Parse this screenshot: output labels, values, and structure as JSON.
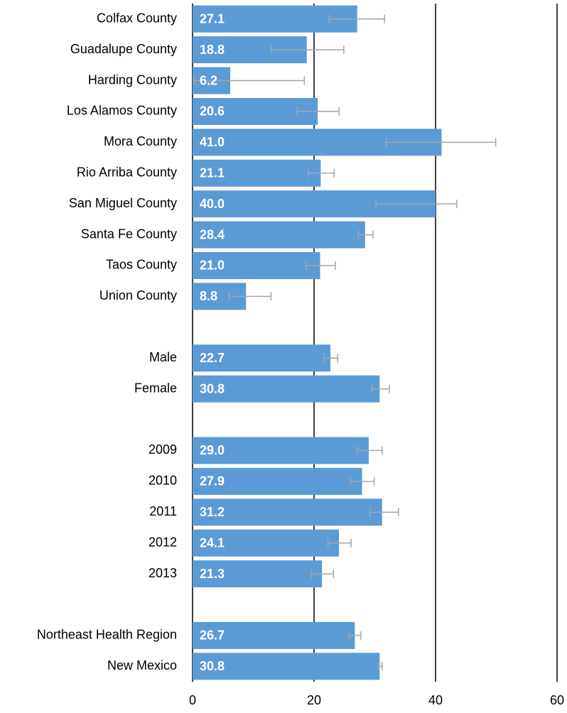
{
  "chart_data": {
    "type": "bar",
    "orientation": "horizontal",
    "categories": [
      "Colfax County",
      "Guadalupe County",
      "Harding County",
      "Los Alamos County",
      "Mora County",
      "Rio Arriba County",
      "San Miguel County",
      "Santa Fe County",
      "Taos County",
      "Union County",
      null,
      "Male",
      "Female",
      null,
      "2009",
      "2010",
      "2011",
      "2012",
      "2013",
      null,
      "Northeast Health Region",
      "New Mexico"
    ],
    "values": [
      27.1,
      18.8,
      6.2,
      20.6,
      41.0,
      21.1,
      40.0,
      28.4,
      21.0,
      8.8,
      null,
      22.7,
      30.8,
      null,
      29.0,
      27.9,
      31.2,
      24.1,
      21.3,
      null,
      26.7,
      30.8
    ],
    "value_labels": [
      "27.1",
      "18.8",
      "6.2",
      "20.6",
      "41.0",
      "21.1",
      "40.0",
      "28.4",
      "21.0",
      "8.8",
      null,
      "22.7",
      "30.8",
      null,
      "29.0",
      "27.9",
      "31.2",
      "24.1",
      "21.3",
      null,
      "26.7",
      "30.8"
    ],
    "ci_low": [
      22.5,
      13.0,
      0.2,
      17.2,
      31.9,
      19.1,
      30.2,
      27.3,
      18.7,
      6.0,
      null,
      21.6,
      29.5,
      null,
      27.1,
      26.0,
      29.2,
      22.3,
      19.6,
      null,
      25.8,
      30.6
    ],
    "ci_high": [
      31.6,
      24.9,
      18.4,
      24.1,
      49.9,
      23.3,
      43.5,
      29.7,
      23.5,
      12.9,
      null,
      23.9,
      32.4,
      null,
      31.2,
      29.9,
      33.9,
      26.1,
      23.2,
      null,
      27.7,
      31.2
    ],
    "color": "#5b9bd5",
    "error_color": "#a5a5a5",
    "xlim": [
      0,
      60
    ],
    "xticks": [
      0,
      20,
      40,
      60
    ],
    "grid": true
  }
}
